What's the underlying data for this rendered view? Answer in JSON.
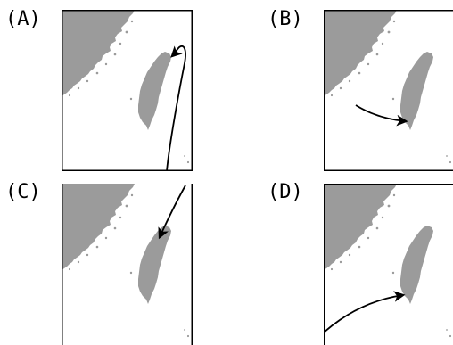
{
  "panels": [
    {
      "id": "a",
      "label": "(A)"
    },
    {
      "id": "b",
      "label": "(B)"
    },
    {
      "id": "c",
      "label": "(C)"
    },
    {
      "id": "d",
      "label": "(D)"
    }
  ],
  "colors": {
    "land": "#9b9b9b",
    "sea": "#ffffff",
    "frame": "#000000",
    "arrow": "#000000"
  }
}
